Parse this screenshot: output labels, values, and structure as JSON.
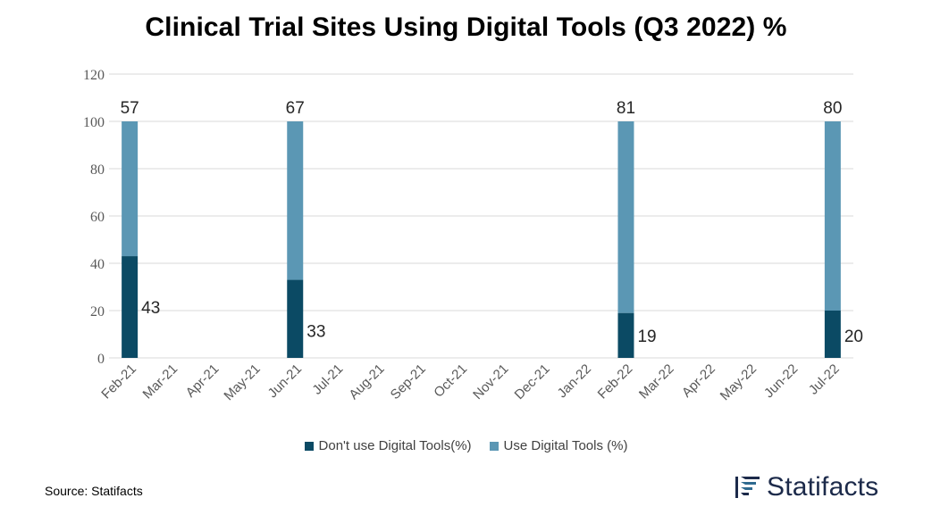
{
  "title": "Clinical Trial Sites Using Digital Tools (Q3 2022) %",
  "source": "Source: Statifacts",
  "brand": "Statifacts",
  "colors": {
    "dont_use": "#0b4a64",
    "use": "#5b97b4",
    "grid": "#d9d9d9"
  },
  "legend": [
    {
      "label": "Don't use Digital Tools(%)",
      "color": "#0b4a64"
    },
    {
      "label": "Use Digital Tools (%)",
      "color": "#5b97b4"
    }
  ],
  "chart_data": {
    "type": "bar",
    "stacked": true,
    "categories": [
      "Feb-21",
      "Mar-21",
      "Apr-21",
      "May-21",
      "Jun-21",
      "Jul-21",
      "Aug-21",
      "Sep-21",
      "Oct-21",
      "Nov-21",
      "Dec-21",
      "Jan-22",
      "Feb-22",
      "Mar-22",
      "Apr-22",
      "May-22",
      "Jun-22",
      "Jul-22"
    ],
    "series": [
      {
        "name": "Don't use Digital Tools(%)",
        "values": [
          43,
          null,
          null,
          null,
          33,
          null,
          null,
          null,
          null,
          null,
          null,
          null,
          19,
          null,
          null,
          null,
          null,
          20
        ]
      },
      {
        "name": "Use Digital Tools (%)",
        "values": [
          57,
          null,
          null,
          null,
          67,
          null,
          null,
          null,
          null,
          null,
          null,
          null,
          81,
          null,
          null,
          null,
          null,
          80
        ]
      }
    ],
    "ylim": [
      0,
      120
    ],
    "yticks": [
      0,
      20,
      40,
      60,
      80,
      100,
      120
    ],
    "grid": true,
    "legend_position": "bottom"
  }
}
